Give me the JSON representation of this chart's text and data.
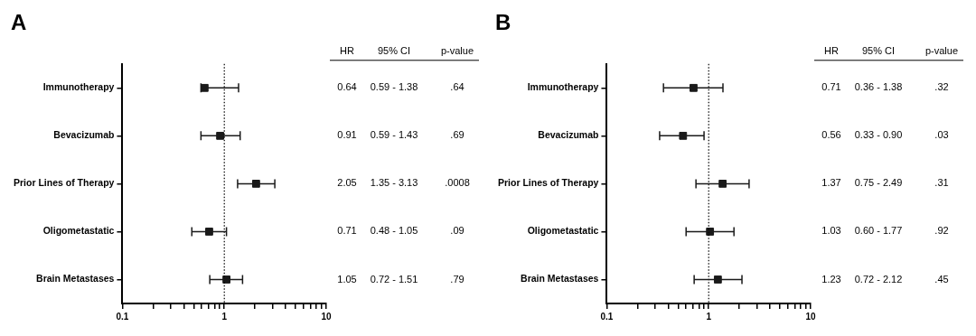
{
  "chart_data": [
    {
      "type": "scatter",
      "title": "A",
      "orientation": "horizontal",
      "categories": [
        "Immunotherapy",
        "Bevacizumab",
        "Prior Lines of Therapy",
        "Oligometastatic",
        "Brain Metastases"
      ],
      "series": [
        {
          "color": "#1a1a1a",
          "values": [
            0.64,
            0.91,
            2.05,
            0.71,
            1.05
          ],
          "errors": [
            [
              0.59,
              1.38
            ],
            [
              0.59,
              1.43
            ],
            [
              1.35,
              3.13
            ],
            [
              0.48,
              1.05
            ],
            [
              0.72,
              1.51
            ]
          ],
          "value_labels": [
            "0.64",
            "0.91",
            "2.05",
            "0.71",
            "1.05"
          ]
        }
      ],
      "marker": "square",
      "log": "x",
      "xlim": [
        0.1,
        10
      ],
      "xticks": [
        0.1,
        {
          "value": 0.2,
          "label": null
        },
        {
          "value": 0.3,
          "label": null
        },
        {
          "value": 0.4,
          "label": null
        },
        {
          "value": 0.5,
          "label": null
        },
        {
          "value": 0.6,
          "label": null
        },
        {
          "value": 0.7,
          "label": null
        },
        {
          "value": 0.8,
          "label": null
        },
        {
          "value": 0.9,
          "label": null
        },
        1,
        {
          "value": 2,
          "label": null
        },
        {
          "value": 3,
          "label": null
        },
        {
          "value": 4,
          "label": null
        },
        {
          "value": 5,
          "label": null
        },
        {
          "value": 6,
          "label": null
        },
        {
          "value": 7,
          "label": null
        },
        {
          "value": 8,
          "label": null
        },
        {
          "value": 9,
          "label": null
        },
        10
      ],
      "ref_lines": [
        {
          "axis": "x",
          "value": 1,
          "line_style": "dotted"
        }
      ],
      "annotations": [
        "HR",
        "95% CI",
        "p-value",
        "0.59 - 1.38",
        ".64",
        "0.59 - 1.43",
        ".69",
        "1.35 - 3.13",
        ".0008",
        "0.48 - 1.05",
        ".09",
        "0.72 - 1.51",
        ".79"
      ]
    },
    {
      "type": "scatter",
      "title": "B",
      "orientation": "horizontal",
      "categories": [
        "Immunotherapy",
        "Bevacizumab",
        "Prior Lines of Therapy",
        "Oligometastatic",
        "Brain Metastases"
      ],
      "series": [
        {
          "color": "#1a1a1a",
          "values": [
            0.71,
            0.56,
            1.37,
            1.03,
            1.23
          ],
          "errors": [
            [
              0.36,
              1.38
            ],
            [
              0.33,
              0.9
            ],
            [
              0.75,
              2.49
            ],
            [
              0.6,
              1.77
            ],
            [
              0.72,
              2.12
            ]
          ],
          "value_labels": [
            "0.71",
            "0.56",
            "1.37",
            "1.03",
            "1.23"
          ]
        }
      ],
      "marker": "square",
      "log": "x",
      "xlim": [
        0.1,
        10
      ],
      "xticks": [
        0.1,
        {
          "value": 0.2,
          "label": null
        },
        {
          "value": 0.3,
          "label": null
        },
        {
          "value": 0.4,
          "label": null
        },
        {
          "value": 0.5,
          "label": null
        },
        {
          "value": 0.6,
          "label": null
        },
        {
          "value": 0.7,
          "label": null
        },
        {
          "value": 0.8,
          "label": null
        },
        {
          "value": 0.9,
          "label": null
        },
        1,
        {
          "value": 2,
          "label": null
        },
        {
          "value": 3,
          "label": null
        },
        {
          "value": 4,
          "label": null
        },
        {
          "value": 5,
          "label": null
        },
        {
          "value": 6,
          "label": null
        },
        {
          "value": 7,
          "label": null
        },
        {
          "value": 8,
          "label": null
        },
        {
          "value": 9,
          "label": null
        },
        10
      ],
      "ref_lines": [
        {
          "axis": "x",
          "value": 1,
          "line_style": "dotted"
        }
      ],
      "annotations": [
        "HR",
        "95% CI",
        "p-value",
        "0.36 - 1.38",
        ".32",
        "0.33 - 0.90",
        ".03",
        "0.75 - 2.49",
        ".31",
        "0.60 - 1.77",
        ".92",
        "0.72 - 2.12",
        ".45"
      ]
    }
  ]
}
